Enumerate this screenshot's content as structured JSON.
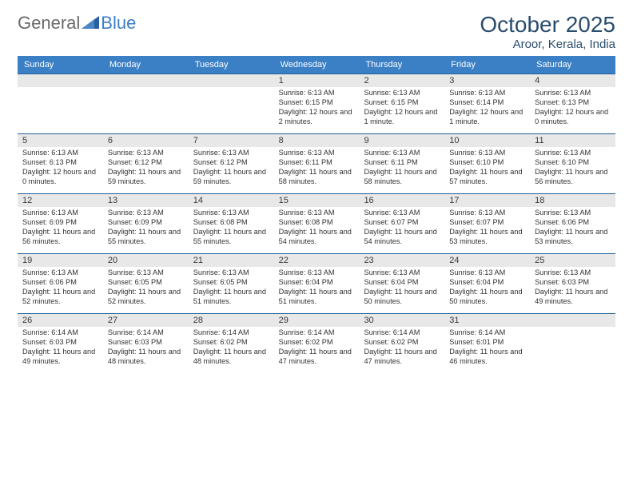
{
  "brand": {
    "part1": "General",
    "part2": "Blue"
  },
  "title": {
    "monthYear": "October 2025",
    "location": "Aroor, Kerala, India"
  },
  "colors": {
    "headerBlue": "#3b7fc4",
    "titleColor": "#2a4d6e",
    "greyRow": "#e8e8e8",
    "divider": "#1f5f99",
    "background": "#ffffff",
    "text": "#3a3a3a"
  },
  "typography": {
    "titleFontSize": 28,
    "locationFontSize": 15,
    "dowFontSize": 11,
    "dayNumFontSize": 11,
    "detailFontSize": 9.2,
    "fontFamily": "Arial"
  },
  "calendar": {
    "daysOfWeek": [
      "Sunday",
      "Monday",
      "Tuesday",
      "Wednesday",
      "Thursday",
      "Friday",
      "Saturday"
    ],
    "weeks": [
      [
        {
          "day": "",
          "sunrise": "",
          "sunset": "",
          "daylight": ""
        },
        {
          "day": "",
          "sunrise": "",
          "sunset": "",
          "daylight": ""
        },
        {
          "day": "",
          "sunrise": "",
          "sunset": "",
          "daylight": ""
        },
        {
          "day": "1",
          "sunrise": "Sunrise: 6:13 AM",
          "sunset": "Sunset: 6:15 PM",
          "daylight": "Daylight: 12 hours and 2 minutes."
        },
        {
          "day": "2",
          "sunrise": "Sunrise: 6:13 AM",
          "sunset": "Sunset: 6:15 PM",
          "daylight": "Daylight: 12 hours and 1 minute."
        },
        {
          "day": "3",
          "sunrise": "Sunrise: 6:13 AM",
          "sunset": "Sunset: 6:14 PM",
          "daylight": "Daylight: 12 hours and 1 minute."
        },
        {
          "day": "4",
          "sunrise": "Sunrise: 6:13 AM",
          "sunset": "Sunset: 6:13 PM",
          "daylight": "Daylight: 12 hours and 0 minutes."
        }
      ],
      [
        {
          "day": "5",
          "sunrise": "Sunrise: 6:13 AM",
          "sunset": "Sunset: 6:13 PM",
          "daylight": "Daylight: 12 hours and 0 minutes."
        },
        {
          "day": "6",
          "sunrise": "Sunrise: 6:13 AM",
          "sunset": "Sunset: 6:12 PM",
          "daylight": "Daylight: 11 hours and 59 minutes."
        },
        {
          "day": "7",
          "sunrise": "Sunrise: 6:13 AM",
          "sunset": "Sunset: 6:12 PM",
          "daylight": "Daylight: 11 hours and 59 minutes."
        },
        {
          "day": "8",
          "sunrise": "Sunrise: 6:13 AM",
          "sunset": "Sunset: 6:11 PM",
          "daylight": "Daylight: 11 hours and 58 minutes."
        },
        {
          "day": "9",
          "sunrise": "Sunrise: 6:13 AM",
          "sunset": "Sunset: 6:11 PM",
          "daylight": "Daylight: 11 hours and 58 minutes."
        },
        {
          "day": "10",
          "sunrise": "Sunrise: 6:13 AM",
          "sunset": "Sunset: 6:10 PM",
          "daylight": "Daylight: 11 hours and 57 minutes."
        },
        {
          "day": "11",
          "sunrise": "Sunrise: 6:13 AM",
          "sunset": "Sunset: 6:10 PM",
          "daylight": "Daylight: 11 hours and 56 minutes."
        }
      ],
      [
        {
          "day": "12",
          "sunrise": "Sunrise: 6:13 AM",
          "sunset": "Sunset: 6:09 PM",
          "daylight": "Daylight: 11 hours and 56 minutes."
        },
        {
          "day": "13",
          "sunrise": "Sunrise: 6:13 AM",
          "sunset": "Sunset: 6:09 PM",
          "daylight": "Daylight: 11 hours and 55 minutes."
        },
        {
          "day": "14",
          "sunrise": "Sunrise: 6:13 AM",
          "sunset": "Sunset: 6:08 PM",
          "daylight": "Daylight: 11 hours and 55 minutes."
        },
        {
          "day": "15",
          "sunrise": "Sunrise: 6:13 AM",
          "sunset": "Sunset: 6:08 PM",
          "daylight": "Daylight: 11 hours and 54 minutes."
        },
        {
          "day": "16",
          "sunrise": "Sunrise: 6:13 AM",
          "sunset": "Sunset: 6:07 PM",
          "daylight": "Daylight: 11 hours and 54 minutes."
        },
        {
          "day": "17",
          "sunrise": "Sunrise: 6:13 AM",
          "sunset": "Sunset: 6:07 PM",
          "daylight": "Daylight: 11 hours and 53 minutes."
        },
        {
          "day": "18",
          "sunrise": "Sunrise: 6:13 AM",
          "sunset": "Sunset: 6:06 PM",
          "daylight": "Daylight: 11 hours and 53 minutes."
        }
      ],
      [
        {
          "day": "19",
          "sunrise": "Sunrise: 6:13 AM",
          "sunset": "Sunset: 6:06 PM",
          "daylight": "Daylight: 11 hours and 52 minutes."
        },
        {
          "day": "20",
          "sunrise": "Sunrise: 6:13 AM",
          "sunset": "Sunset: 6:05 PM",
          "daylight": "Daylight: 11 hours and 52 minutes."
        },
        {
          "day": "21",
          "sunrise": "Sunrise: 6:13 AM",
          "sunset": "Sunset: 6:05 PM",
          "daylight": "Daylight: 11 hours and 51 minutes."
        },
        {
          "day": "22",
          "sunrise": "Sunrise: 6:13 AM",
          "sunset": "Sunset: 6:04 PM",
          "daylight": "Daylight: 11 hours and 51 minutes."
        },
        {
          "day": "23",
          "sunrise": "Sunrise: 6:13 AM",
          "sunset": "Sunset: 6:04 PM",
          "daylight": "Daylight: 11 hours and 50 minutes."
        },
        {
          "day": "24",
          "sunrise": "Sunrise: 6:13 AM",
          "sunset": "Sunset: 6:04 PM",
          "daylight": "Daylight: 11 hours and 50 minutes."
        },
        {
          "day": "25",
          "sunrise": "Sunrise: 6:13 AM",
          "sunset": "Sunset: 6:03 PM",
          "daylight": "Daylight: 11 hours and 49 minutes."
        }
      ],
      [
        {
          "day": "26",
          "sunrise": "Sunrise: 6:14 AM",
          "sunset": "Sunset: 6:03 PM",
          "daylight": "Daylight: 11 hours and 49 minutes."
        },
        {
          "day": "27",
          "sunrise": "Sunrise: 6:14 AM",
          "sunset": "Sunset: 6:03 PM",
          "daylight": "Daylight: 11 hours and 48 minutes."
        },
        {
          "day": "28",
          "sunrise": "Sunrise: 6:14 AM",
          "sunset": "Sunset: 6:02 PM",
          "daylight": "Daylight: 11 hours and 48 minutes."
        },
        {
          "day": "29",
          "sunrise": "Sunrise: 6:14 AM",
          "sunset": "Sunset: 6:02 PM",
          "daylight": "Daylight: 11 hours and 47 minutes."
        },
        {
          "day": "30",
          "sunrise": "Sunrise: 6:14 AM",
          "sunset": "Sunset: 6:02 PM",
          "daylight": "Daylight: 11 hours and 47 minutes."
        },
        {
          "day": "31",
          "sunrise": "Sunrise: 6:14 AM",
          "sunset": "Sunset: 6:01 PM",
          "daylight": "Daylight: 11 hours and 46 minutes."
        },
        {
          "day": "",
          "sunrise": "",
          "sunset": "",
          "daylight": ""
        }
      ]
    ]
  }
}
